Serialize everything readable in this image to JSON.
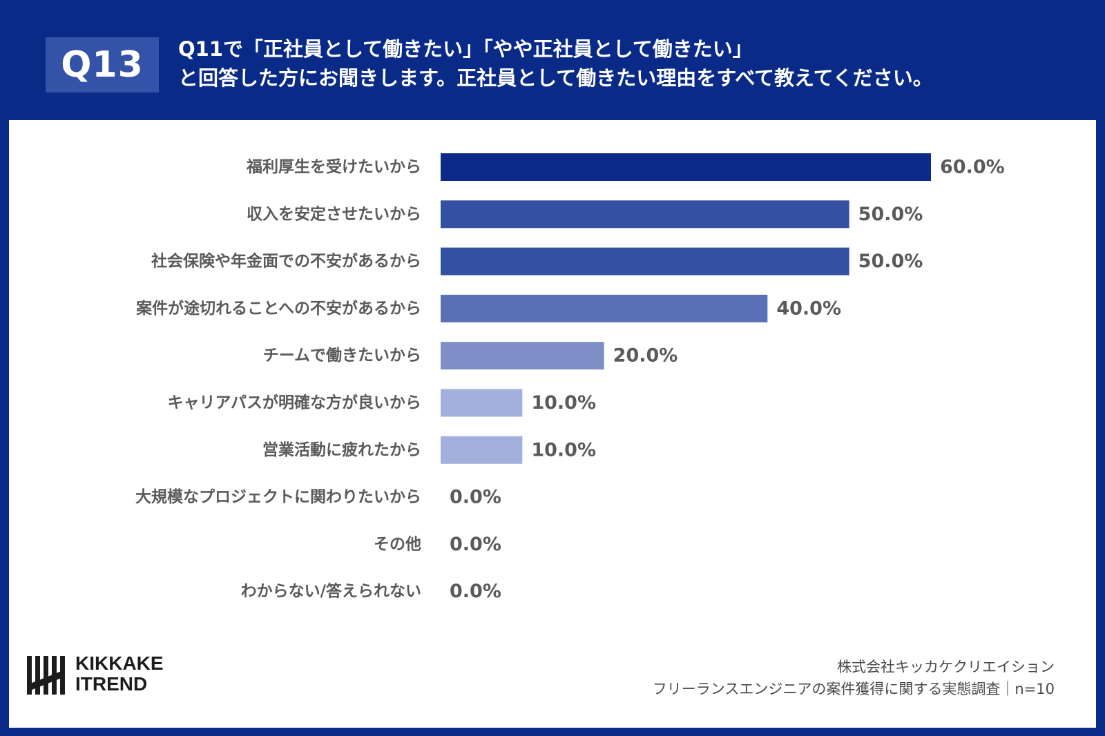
{
  "header": {
    "badge": "Q13",
    "line1": "Q11で「正社員として働きたい」「やや正社員として働きたい」",
    "line2": "と回答した方にお聞きします。正社員として働きたい理由をすべて教えてください。"
  },
  "chart_data": {
    "type": "bar",
    "orientation": "horizontal",
    "categories": [
      "福利厚生を受けたいから",
      "収入を安定させたいから",
      "社会保険や年金面での不安があるから",
      "案件が途切れることへの不安があるから",
      "チームで働きたいから",
      "キャリアパスが明確な方が良いから",
      "営業活動に疲れたから",
      "大規模なプロジェクトに関わりたいから",
      "その他",
      "わからない/答えられない"
    ],
    "values": [
      60.0,
      50.0,
      50.0,
      40.0,
      20.0,
      10.0,
      10.0,
      0.0,
      0.0,
      0.0
    ],
    "value_labels": [
      "60.0%",
      "50.0%",
      "50.0%",
      "40.0%",
      "20.0%",
      "10.0%",
      "10.0%",
      "0.0%",
      "0.0%",
      "0.0%"
    ],
    "xlim": [
      0,
      100
    ],
    "bar_colors": [
      "#0d2a88",
      "#3450a3",
      "#3450a3",
      "#5a70b6",
      "#7e8ec6",
      "#a4b0dc",
      "#a4b0dc",
      "#a4b0dc",
      "#a4b0dc",
      "#a4b0dc"
    ],
    "label_color": "#5a5a5a"
  },
  "logo": {
    "line1": "KIKKAKE",
    "line2": "ITREND"
  },
  "credit": {
    "company": "株式会社キッカケクリエイション",
    "survey": "フリーランスエンジニアの案件獲得に関する実態調査｜n=10"
  },
  "colors": {
    "background": "#0a2a88",
    "badge": "#3452a7",
    "panel": "#ffffff"
  }
}
